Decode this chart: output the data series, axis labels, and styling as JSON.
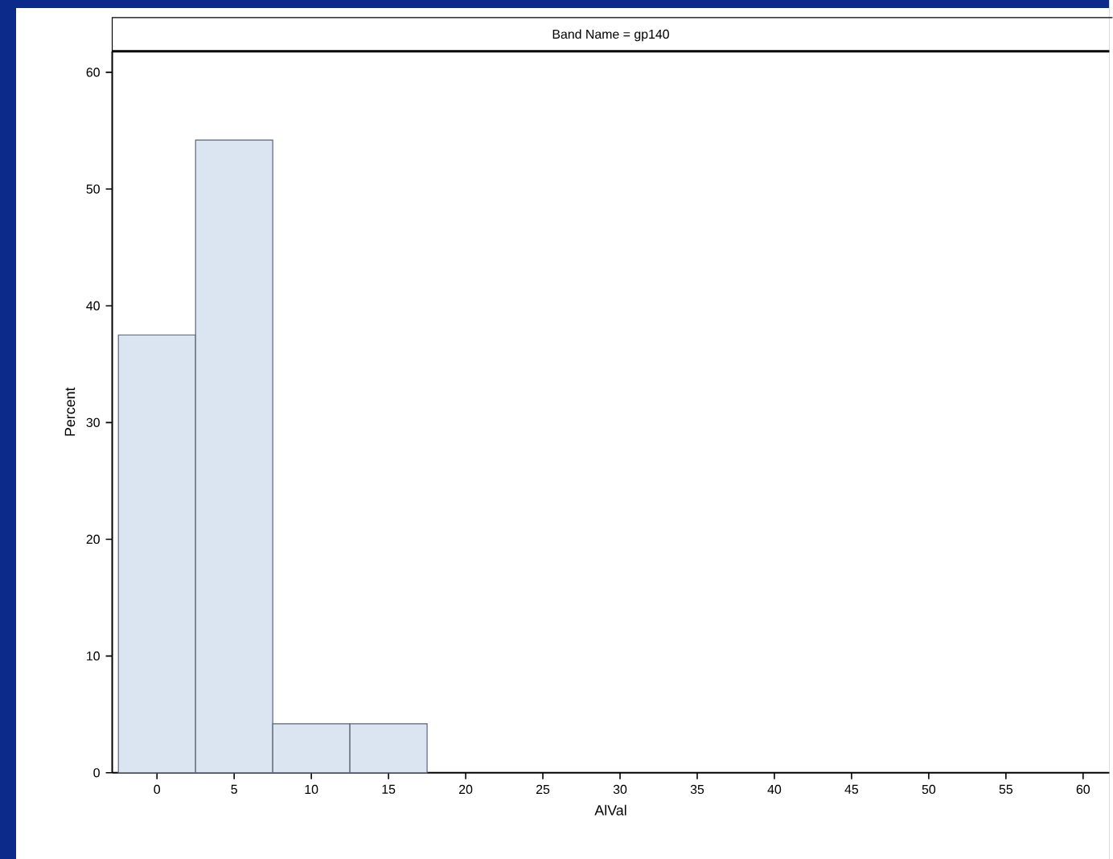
{
  "chart_data": {
    "type": "histogram",
    "title": "Band Name = gp140",
    "xlabel": "AlVal",
    "ylabel": "Percent",
    "bins": [
      -2.5,
      2.5,
      7.5,
      12.5,
      17.5
    ],
    "values": [
      37.5,
      54.2,
      4.2,
      4.2
    ],
    "color": "#dbe5f1",
    "xlim": [
      -2.9,
      61.7
    ],
    "ylim": [
      0,
      61.8
    ],
    "xticks": [
      0,
      5,
      10,
      15,
      20,
      25,
      30,
      35,
      40,
      45,
      50,
      55,
      60
    ],
    "yticks": [
      0,
      10,
      20,
      30,
      40,
      50,
      60
    ]
  }
}
